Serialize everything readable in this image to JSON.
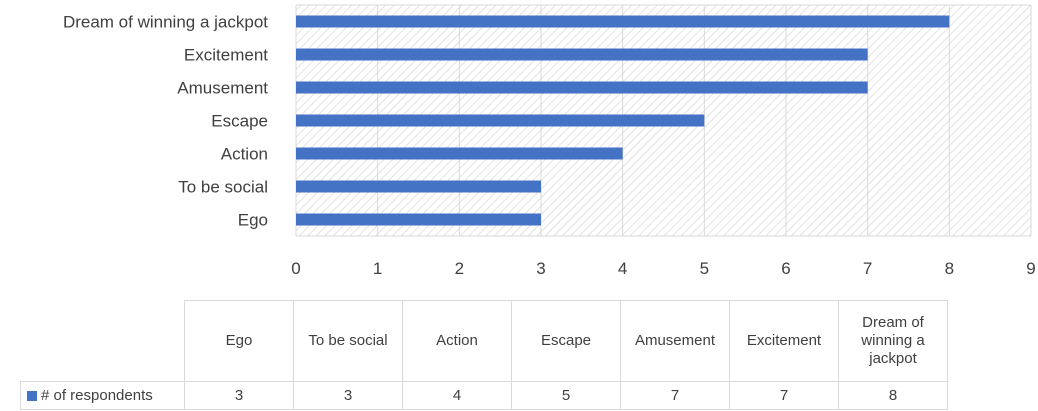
{
  "chart_data": {
    "type": "bar",
    "orientation": "horizontal",
    "categories": [
      "Ego",
      "To be social",
      "Action",
      "Escape",
      "Amusement",
      "Excitement",
      "Dream of winning a jackpot"
    ],
    "series": [
      {
        "name": "# of respondents",
        "values": [
          3,
          3,
          4,
          5,
          7,
          7,
          8
        ],
        "color": "#4472c4"
      }
    ],
    "x_ticks": [
      "0",
      "1",
      "2",
      "3",
      "4",
      "5",
      "6",
      "7",
      "8",
      "9"
    ],
    "xlim": [
      0,
      9
    ],
    "grid": true,
    "plot_background": "hatched-light-gray",
    "data_table": {
      "header_labels": [
        "Ego",
        "To be social",
        "Action",
        "Escape",
        "Amusement",
        "Excitement",
        "Dream of winning a jackpot"
      ],
      "row_label": "# of respondents",
      "row_values": [
        "3",
        "3",
        "4",
        "5",
        "7",
        "7",
        "8"
      ]
    }
  }
}
